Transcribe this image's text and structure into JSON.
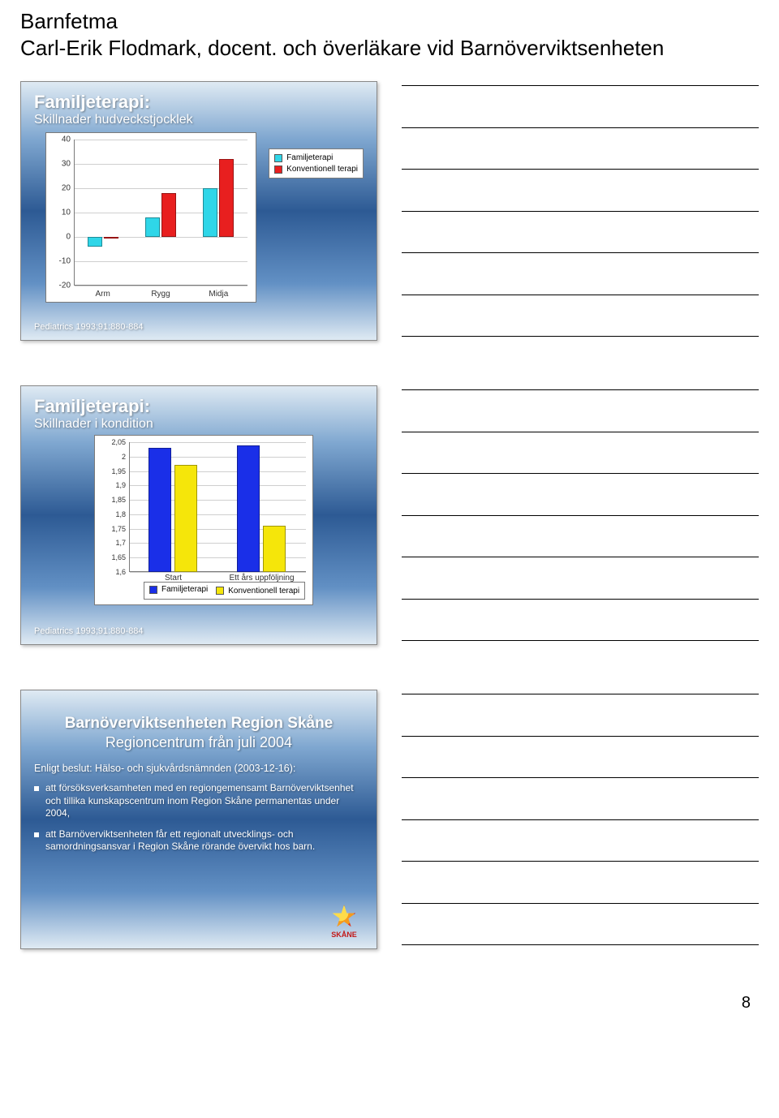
{
  "header": {
    "title_line1": "Barnfetma",
    "title_line2": "Carl-Erik Flodmark, docent. och överläkare vid Barnöverviktsenheten"
  },
  "slides": {
    "slide1": {
      "title": "Familjeterapi:",
      "subtitle": "Skillnader hudveckstjocklek",
      "footnote": "Pediatrics 1993;91:880-884",
      "chart": {
        "type": "grouped-bar",
        "ymin": -20,
        "ymax": 40,
        "ystep": 10,
        "categories": [
          "Arm",
          "Rygg",
          "Midja"
        ],
        "series": [
          {
            "name": "Familjeterapi",
            "color": "#2fd6e8",
            "values": [
              -4,
              8,
              20
            ]
          },
          {
            "name": "Konventionell terapi",
            "color": "#e81f1f",
            "values": [
              0,
              18,
              32
            ]
          }
        ],
        "background": "#ffffff",
        "grid_color": "#cfcfcf"
      }
    },
    "slide2": {
      "title": "Familjeterapi:",
      "subtitle": "Skillnader i kondition",
      "footnote": "Pediatrics 1993;91:880-884",
      "chart": {
        "type": "grouped-bar",
        "ymin": 1.6,
        "ymax": 2.05,
        "ystep": 0.05,
        "categories": [
          "Start",
          "Ett års uppföljning"
        ],
        "series": [
          {
            "name": "Familjeterapi",
            "color": "#1a2fe8",
            "values": [
              2.03,
              2.04
            ]
          },
          {
            "name": "Konventionell terapi",
            "color": "#f5e60a",
            "values": [
              1.97,
              1.76
            ]
          }
        ],
        "background": "#ffffff",
        "grid_color": "#cfcfcf"
      }
    },
    "slide3": {
      "heading1": "Barnöverviktsenheten Region Skåne",
      "heading2": "Regioncentrum från juli 2004",
      "intro": "Enligt beslut: Hälso- och sjukvårdsnämnden (2003-12-16):",
      "bullets": [
        "att försöksverksamheten med en regiongemensamt Barnöverviktsenhet och tillika kunskapscentrum inom Region Skåne permanentas under 2004,",
        "att Barnöverviktsenheten får ett regionalt utvecklings- och samordningsansvar i Region Skåne rörande övervikt hos barn."
      ],
      "logo_text": "SKÅNE"
    }
  },
  "note_lines": 7,
  "page_number": "8"
}
